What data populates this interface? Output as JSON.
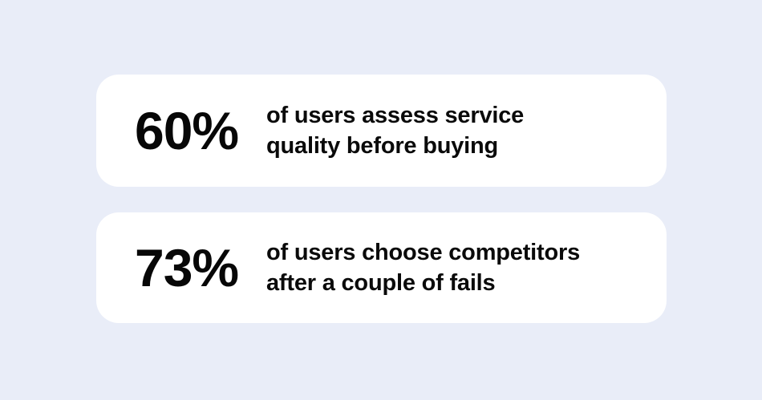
{
  "page": {
    "background_color": "#E9EDF8",
    "card_color": "#FFFFFF",
    "text_color": "#0A0A0A"
  },
  "stats": [
    {
      "value": "60%",
      "description_line1": "of users assess service",
      "description_line2": "quality before buying"
    },
    {
      "value": "73%",
      "description_line1": "of users choose competitors",
      "description_line2": "after a couple of fails"
    }
  ]
}
